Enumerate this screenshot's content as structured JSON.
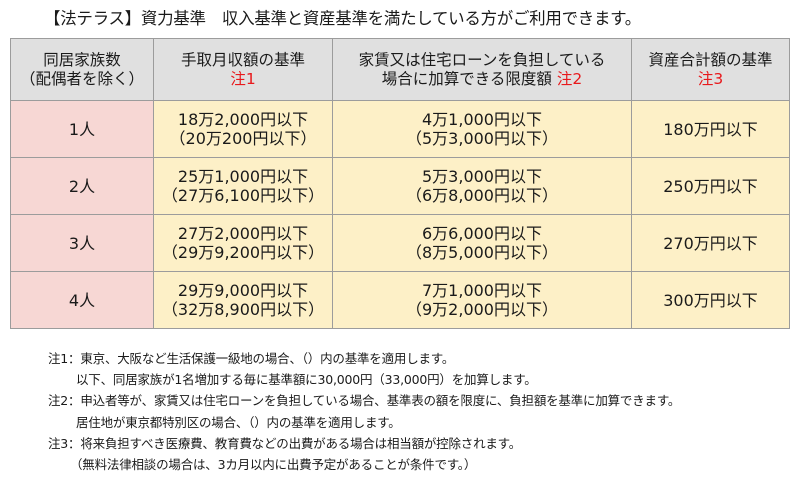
{
  "title": "【法テラス】資力基準　収入基準と資産基準を満たしている方がご利用できます。",
  "table": {
    "headers": [
      {
        "line1": "同居家族数",
        "line2": "（配偶者を除く）",
        "note": ""
      },
      {
        "line1": "手取月収額の基準",
        "line2": "",
        "note": "注1"
      },
      {
        "line1": "家賃又は住宅ローンを負担している",
        "line2": "場合に加算できる限度額",
        "note": "注2"
      },
      {
        "line1": "資産合計額の基準",
        "line2": "",
        "note": "注3"
      }
    ],
    "rows": [
      {
        "people": "1人",
        "income": "18万2,000円以下",
        "income_alt": "（20万200円以下）",
        "rent": "4万1,000円以下",
        "rent_alt": "（5万3,000円以下）",
        "assets": "180万円以下"
      },
      {
        "people": "2人",
        "income": "25万1,000円以下",
        "income_alt": "（27万6,100円以下）",
        "rent": "5万3,000円以下",
        "rent_alt": "（6万8,000円以下）",
        "assets": "250万円以下"
      },
      {
        "people": "3人",
        "income": "27万2,000円以下",
        "income_alt": "（29万9,200円以下）",
        "rent": "6万6,000円以下",
        "rent_alt": "（8万5,000円以下）",
        "assets": "270万円以下"
      },
      {
        "people": "4人",
        "income": "29万9,000円以下",
        "income_alt": "（32万8,900円以下）",
        "rent": "7万1,000円以下",
        "rent_alt": "（9万2,000円以下）",
        "assets": "300万円以下"
      }
    ]
  },
  "notes": [
    "注1：東京、大阪など生活保護一級地の場合、（）内の基準を適用します。",
    "以下、同居家族が1名増加する毎に基準額に30,000円（33,000円）を加算します。",
    "注2：申込者等が、家賃又は住宅ローンを負担している場合、基準表の額を限度に、負担額を基準に加算できます。",
    "居住地が東京都特別区の場合、（）内の基準を適用します。",
    "注3：将来負担すべき医療費、教育費などの出費がある場合は相当額が控除されます。",
    "（無料法律相談の場合は、3カ月以内に出費予定があることが条件です。）"
  ]
}
